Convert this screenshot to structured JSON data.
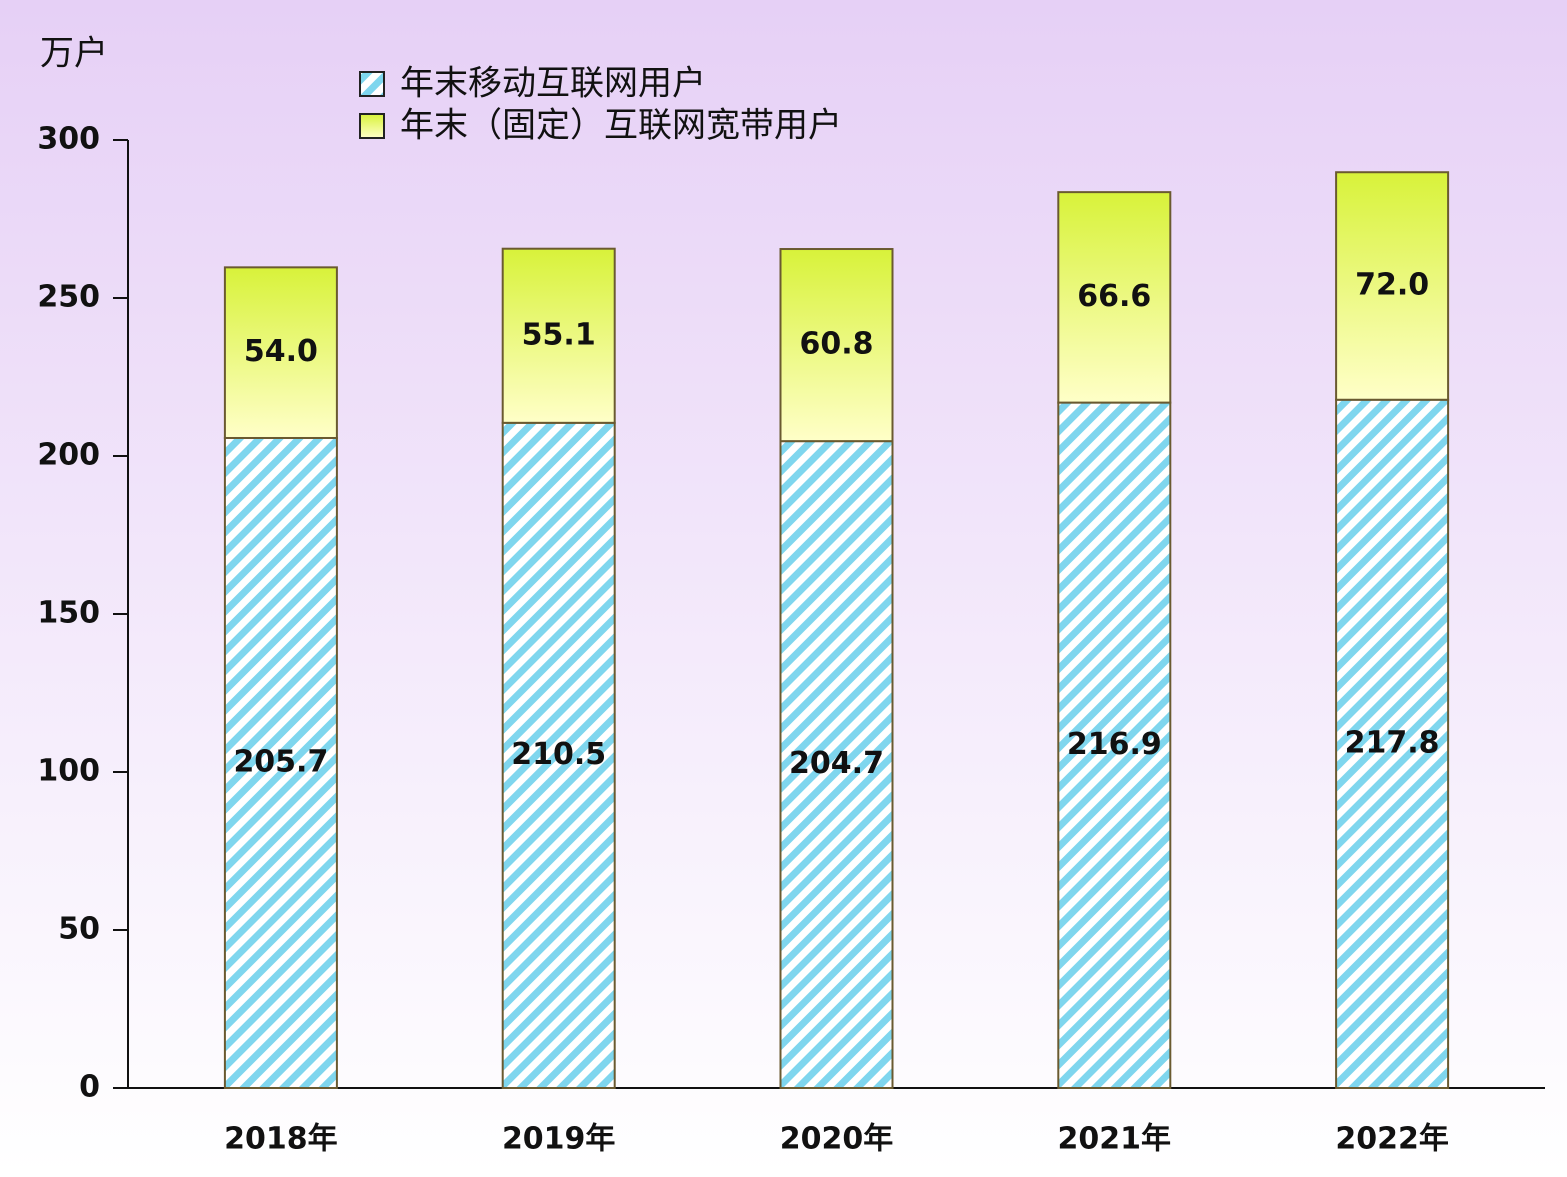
{
  "chart_data": {
    "type": "stacked-bar",
    "y_label": "万户",
    "categories": [
      "2018年",
      "2019年",
      "2020年",
      "2021年",
      "2022年"
    ],
    "series": [
      {
        "name": "年末移动互联网用户",
        "color": "#7fd6ee",
        "values": [
          205.7,
          210.5,
          204.7,
          216.9,
          217.8
        ],
        "value_labels": [
          "205.7",
          "210.5",
          "204.7",
          "216.9",
          "217.8"
        ]
      },
      {
        "name": "年末（固定）互联网宽带用户",
        "color": "#d8f23a",
        "values": [
          54.0,
          55.1,
          60.8,
          66.6,
          72.0
        ],
        "value_labels": [
          "54.0",
          "55.1",
          "60.8",
          "66.6",
          "72.0"
        ]
      }
    ],
    "ylim": [
      0,
      300
    ],
    "yticks": [
      0,
      50,
      100,
      150,
      200,
      250,
      300
    ],
    "grid": false
  }
}
